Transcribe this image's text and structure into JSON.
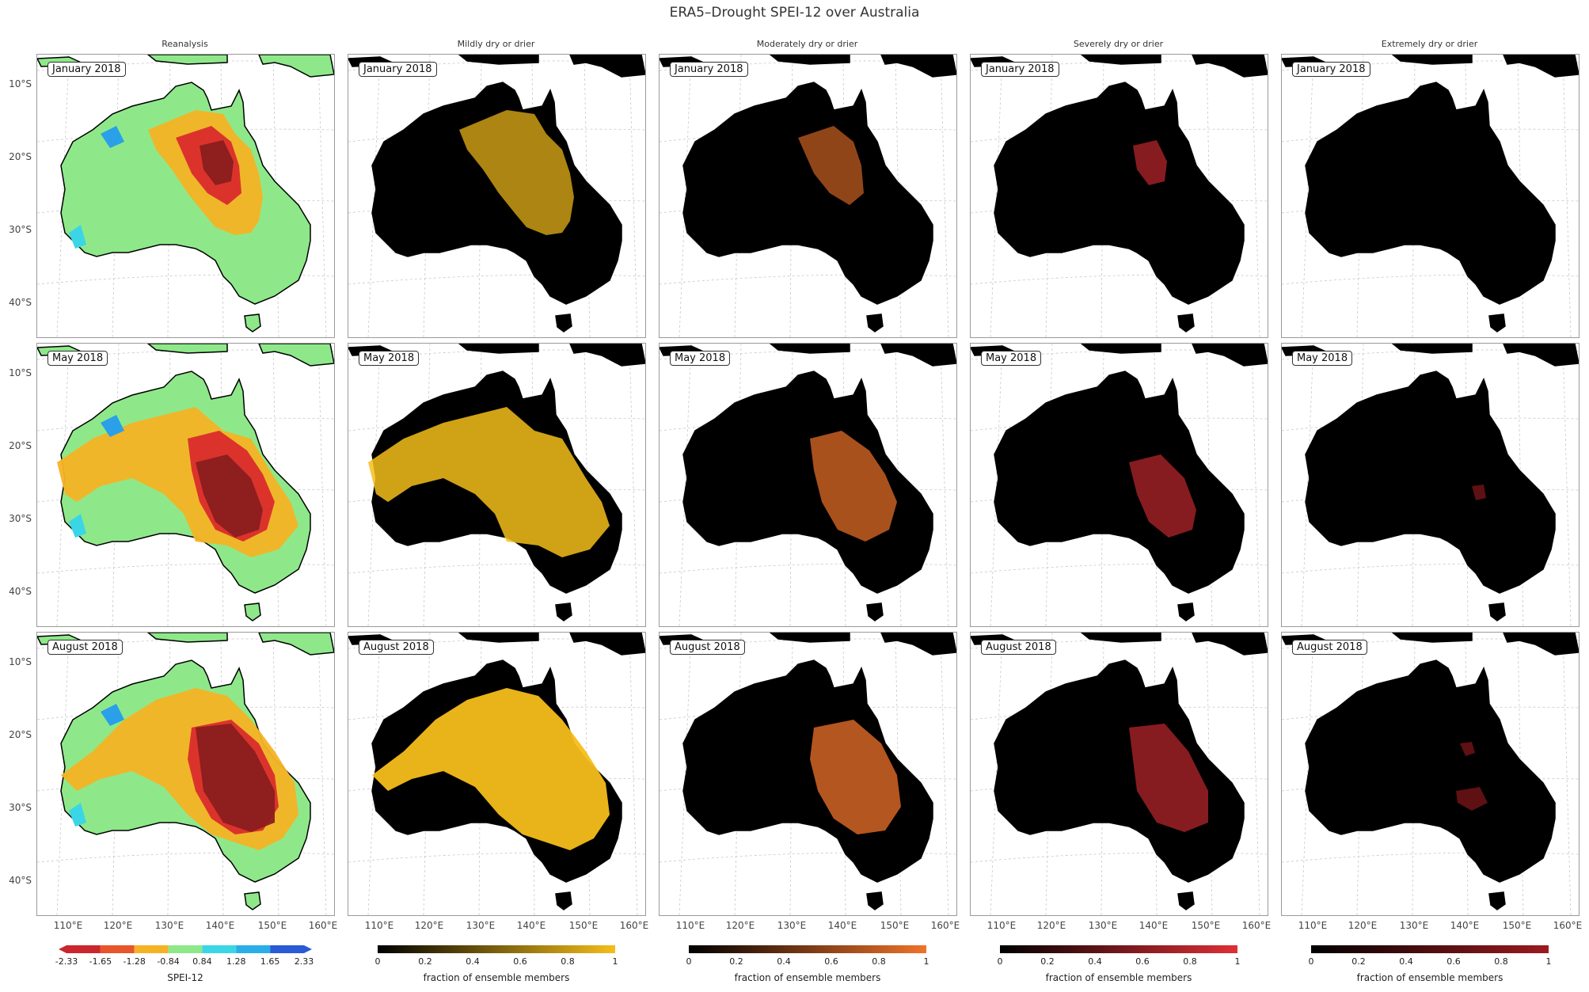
{
  "title": "ERA5–Drought SPEI-12 over Australia",
  "column_titles": [
    "Reanalysis",
    "Mildly dry or drier",
    "Moderately dry or drier",
    "Severely dry or drier",
    "Extremely dry or drier"
  ],
  "row_labels": [
    "January 2018",
    "May 2018",
    "August 2018"
  ],
  "lat_labels": [
    "10°S",
    "20°S",
    "30°S",
    "40°S"
  ],
  "lon_labels": [
    "110°E",
    "120°E",
    "130°E",
    "140°E",
    "150°E",
    "160°E"
  ],
  "colorbars": {
    "spei": {
      "label": "SPEI-12",
      "ticks": [
        "-2.33",
        "-1.65",
        "-1.28",
        "-0.84",
        "0.84",
        "1.28",
        "1.65",
        "2.33"
      ],
      "colors": [
        "#c9272d",
        "#e8552b",
        "#f5b324",
        "#8ee88a",
        "#3bd6e6",
        "#29aee8",
        "#2a5bd6"
      ]
    },
    "fraction": {
      "label": "fraction of ensemble members",
      "ticks": [
        "0",
        "0.2",
        "0.4",
        "0.6",
        "0.8",
        "1"
      ],
      "end_colors": [
        "#f5be1a",
        "#f0732a",
        "#e02f36",
        "#9c1b1f"
      ]
    }
  },
  "colors": {
    "spei_normal": "#8ee88a",
    "spei_moderate": "#f5b324",
    "spei_severe": "#d92c2c",
    "spei_extreme": "#8b1e1e",
    "spei_wet": "#3bd6e6",
    "spei_verywet": "#2aa0e8",
    "mild": "#f5be1a",
    "moderate": "#f0732a",
    "severe": "#e02f36",
    "extreme": "#9c1b1f",
    "no_signal": "#000000"
  },
  "drought_level": [
    [
      0.7,
      0.55,
      0.45,
      0.0
    ],
    [
      0.85,
      0.7,
      0.55,
      0.05
    ],
    [
      0.95,
      0.75,
      0.6,
      0.15
    ]
  ]
}
